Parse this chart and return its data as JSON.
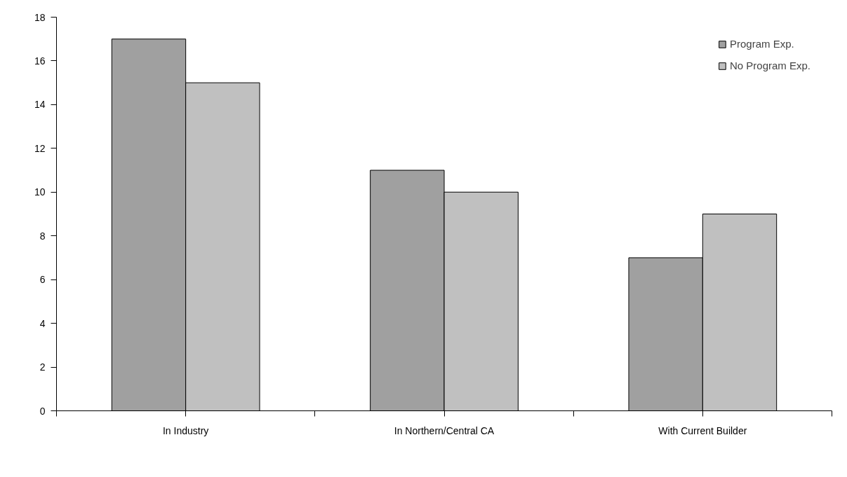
{
  "chart_data": {
    "type": "bar",
    "categories": [
      "In Industry",
      "In Northern/Central CA",
      "With Current Builder"
    ],
    "series": [
      {
        "name": "Program Exp.",
        "color": "#a0a0a0",
        "values": [
          17,
          11,
          7
        ]
      },
      {
        "name": "No Program Exp.",
        "color": "#c0c0c0",
        "values": [
          15,
          10,
          9
        ]
      }
    ],
    "ylim": [
      0,
      18
    ],
    "yticks": [
      0,
      2,
      4,
      6,
      8,
      10,
      12,
      14,
      16,
      18
    ],
    "grid": false,
    "legend": "top right"
  }
}
